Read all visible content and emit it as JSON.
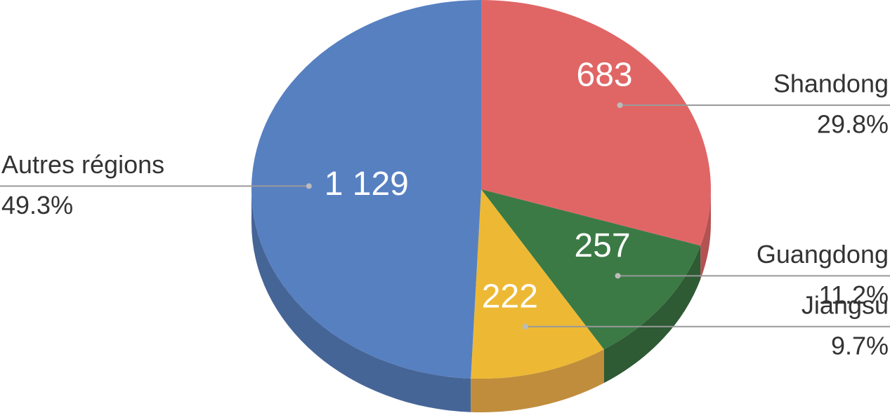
{
  "chart_data": {
    "type": "pie3d",
    "categories": [
      "Shandong",
      "Guangdong",
      "Jiangsu",
      "Autres régions"
    ],
    "values": [
      683,
      257,
      222,
      1129
    ],
    "value_labels": [
      "683",
      "257",
      "222",
      "1 129"
    ],
    "percents": [
      29.8,
      11.2,
      9.7,
      49.3
    ],
    "percent_labels": [
      "29.8%",
      "11.2%",
      "9.7%",
      "49.3%"
    ],
    "colors": [
      "#e06666",
      "#3b7a45",
      "#edb935",
      "#5780c1"
    ],
    "side_colors": [
      "#b45252",
      "#2e5a34",
      "#c08d3c",
      "#466597"
    ]
  }
}
